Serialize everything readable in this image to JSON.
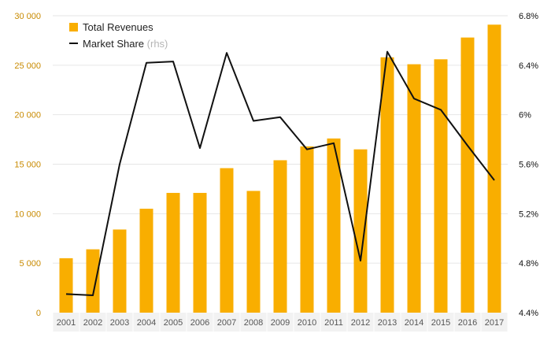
{
  "chart_data": {
    "type": "bar",
    "categories": [
      "2001",
      "2002",
      "2003",
      "2004",
      "2005",
      "2006",
      "2007",
      "2008",
      "2009",
      "2010",
      "2011",
      "2012",
      "2013",
      "2014",
      "2015",
      "2016",
      "2017"
    ],
    "series": [
      {
        "name": "Total Revenues",
        "type": "bar",
        "axis": "left",
        "values": [
          5500,
          6400,
          8400,
          10500,
          12100,
          12100,
          14600,
          12300,
          15400,
          16800,
          17600,
          16500,
          25800,
          25100,
          25600,
          27800,
          29100
        ]
      },
      {
        "name": "Market Share",
        "type": "line",
        "axis": "right",
        "values": [
          4.55,
          4.54,
          5.6,
          6.42,
          6.43,
          5.73,
          6.5,
          5.95,
          5.98,
          5.72,
          5.77,
          4.82,
          6.51,
          6.13,
          6.04,
          5.75,
          5.47
        ]
      }
    ],
    "y_left": {
      "ylim": [
        0,
        30000
      ],
      "ticks": [
        0,
        5000,
        10000,
        15000,
        20000,
        25000,
        30000
      ],
      "tick_labels": [
        "0",
        "5 000",
        "10 000",
        "15 000",
        "20 000",
        "25 000",
        "30 000"
      ]
    },
    "y_right": {
      "ylim": [
        4.4,
        6.8
      ],
      "ticks": [
        4.4,
        4.8,
        5.2,
        5.6,
        6.0,
        6.4,
        6.8
      ],
      "tick_labels": [
        "4.4%",
        "4.8%",
        "5.2%",
        "5.6%",
        "6%",
        "6.4%",
        "6.8%"
      ]
    },
    "legend": {
      "position": "top-left",
      "entries": [
        {
          "label": "Total Revenues",
          "suffix": ""
        },
        {
          "label": "Market Share",
          "suffix": "(rhs)"
        }
      ]
    },
    "grid": true,
    "colors": {
      "bar": "#f9ae00",
      "line": "#111111",
      "grid": "#e6e6e6",
      "axis_band": "#f2f2f2",
      "left_ticks": "#c88a00"
    }
  }
}
